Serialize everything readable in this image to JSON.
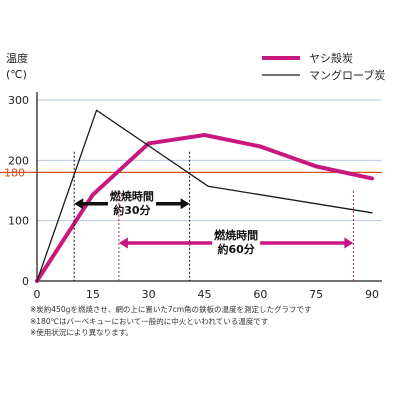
{
  "chart_data": {
    "type": "line",
    "ylabel_line1": "温度",
    "ylabel_line2": "(℃)",
    "xlim": [
      0,
      90
    ],
    "ylim": [
      0,
      300
    ],
    "x_ticks": [
      "0",
      "15",
      "30",
      "45",
      "60",
      "75",
      "90"
    ],
    "x_tick_values": [
      0,
      15,
      30,
      45,
      60,
      75,
      90
    ],
    "y_ticks": [
      "0",
      "100",
      "200",
      "300"
    ],
    "y_tick_values": [
      0,
      100,
      200,
      300
    ],
    "grid": "horizontal",
    "legend_position": "top-right",
    "reference_line": {
      "value": 180,
      "label": "180",
      "color": "#d4531c"
    },
    "series": [
      {
        "name": "ヤシ殻炭",
        "color": "#c8177f",
        "x": [
          0,
          15,
          30,
          45,
          60,
          75,
          90
        ],
        "y": [
          0,
          143,
          228,
          242,
          223,
          190,
          170
        ]
      },
      {
        "name": "マングローブ炭",
        "color": "#1a1a1a",
        "x": [
          0,
          16,
          46,
          90
        ],
        "y": [
          0,
          283,
          157,
          113
        ]
      }
    ],
    "annotations": [
      {
        "label_line1": "燃焼時間",
        "label_line2": "約30分",
        "from": 10,
        "to": 41,
        "y": 128,
        "color": "#111111"
      },
      {
        "label_line1": "燃焼時間",
        "label_line2": "約60分",
        "from": 22,
        "to": 85,
        "y": 63,
        "color": "#c8177f"
      }
    ]
  },
  "notes": [
    "※炭約450gを燃焼させ、網の上に置いた7cm角の鉄板の温度を測定したグラフです",
    "※180℃はバーベキューにおいて一般的に中火といわれている温度です",
    "※使用状況により異なります。"
  ]
}
